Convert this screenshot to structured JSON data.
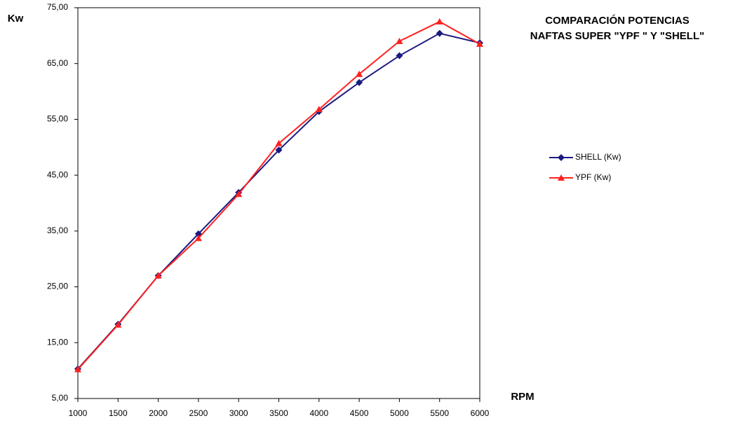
{
  "chart_data": {
    "type": "line",
    "title": [
      "COMPARACIÓN POTENCIAS",
      "NAFTAS  SUPER \"YPF \" Y  \"SHELL\""
    ],
    "x_label": "RPM",
    "y_label": "Kw",
    "x": [
      1000,
      1500,
      2000,
      2500,
      3000,
      3500,
      4000,
      4500,
      5000,
      5500,
      6000
    ],
    "series": [
      {
        "name": "SHELL (Kw)",
        "color": "#1a1a80",
        "marker": "diamond",
        "values": [
          10.3,
          18.3,
          27.0,
          34.5,
          41.9,
          49.5,
          56.4,
          61.6,
          66.4,
          70.4,
          68.7
        ]
      },
      {
        "name": "YPF  (Kw)",
        "color": "#ff2020",
        "marker": "triangle",
        "values": [
          10.2,
          18.2,
          27.0,
          33.7,
          41.6,
          50.7,
          56.8,
          63.1,
          69.0,
          72.5,
          68.5
        ]
      }
    ],
    "xlim": [
      1000,
      6000
    ],
    "xticks": [
      1000,
      1500,
      2000,
      2500,
      3000,
      3500,
      4000,
      4500,
      5000,
      5500,
      6000
    ],
    "ylim": [
      5,
      75
    ],
    "yticks": [
      {
        "value": 5,
        "label": "5,00"
      },
      {
        "value": 15,
        "label": "15,00"
      },
      {
        "value": 25,
        "label": "25,00"
      },
      {
        "value": 35,
        "label": "35,00"
      },
      {
        "value": 45,
        "label": "45,00"
      },
      {
        "value": 55,
        "label": "55,00"
      },
      {
        "value": 65,
        "label": "65,00"
      },
      {
        "value": 75,
        "label": "75,00"
      }
    ],
    "grid": false,
    "legend": "right"
  }
}
